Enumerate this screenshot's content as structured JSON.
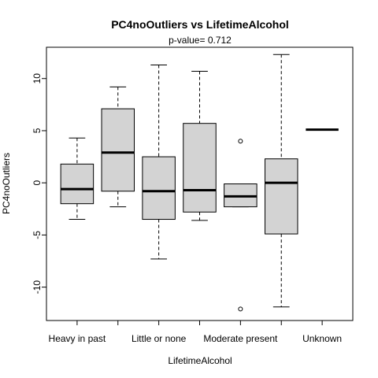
{
  "chart_data": {
    "type": "box",
    "title": "PC4noOutliers  vs  LifetimeAlcohol",
    "subtitle": "p-value= 0.712",
    "xlabel": "LifetimeAlcohol",
    "ylabel": "PC4noOutliers",
    "ylim": [
      -13.2,
      13.0
    ],
    "yticks": [
      -10,
      -5,
      0,
      5,
      10
    ],
    "ytick_labels": [
      "-10",
      "-5",
      "0",
      "5",
      "10"
    ],
    "xtick_labels_shown": [
      "Heavy in past",
      "",
      "Little or none",
      "",
      "Moderate present",
      "",
      "Unknown"
    ],
    "box_fill": "#d3d3d3",
    "boxes": [
      {
        "category": "Heavy in past",
        "whisker_low": -3.5,
        "q1": -2.0,
        "median": -0.6,
        "q3": 1.8,
        "whisker_high": 4.3,
        "outliers": []
      },
      {
        "category": "",
        "whisker_low": -2.3,
        "q1": -0.8,
        "median": 2.9,
        "q3": 7.1,
        "whisker_high": 9.2,
        "outliers": []
      },
      {
        "category": "Little or none",
        "whisker_low": -7.3,
        "q1": -3.5,
        "median": -0.8,
        "q3": 2.5,
        "whisker_high": 11.3,
        "outliers": []
      },
      {
        "category": "",
        "whisker_low": -3.6,
        "q1": -2.8,
        "median": -0.7,
        "q3": 5.7,
        "whisker_high": 10.7,
        "outliers": []
      },
      {
        "category": "Moderate present",
        "whisker_low": -2.3,
        "q1": -2.3,
        "median": -1.3,
        "q3": -0.1,
        "whisker_high": -0.1,
        "outliers": [
          4.0,
          -12.1
        ]
      },
      {
        "category": "",
        "whisker_low": -11.9,
        "q1": -4.9,
        "median": 0.0,
        "q3": 2.3,
        "whisker_high": 12.3,
        "outliers": []
      },
      {
        "category": "Unknown",
        "whisker_low": 5.1,
        "q1": 5.1,
        "median": 5.1,
        "q3": 5.1,
        "whisker_high": 5.1,
        "outliers": []
      }
    ]
  }
}
